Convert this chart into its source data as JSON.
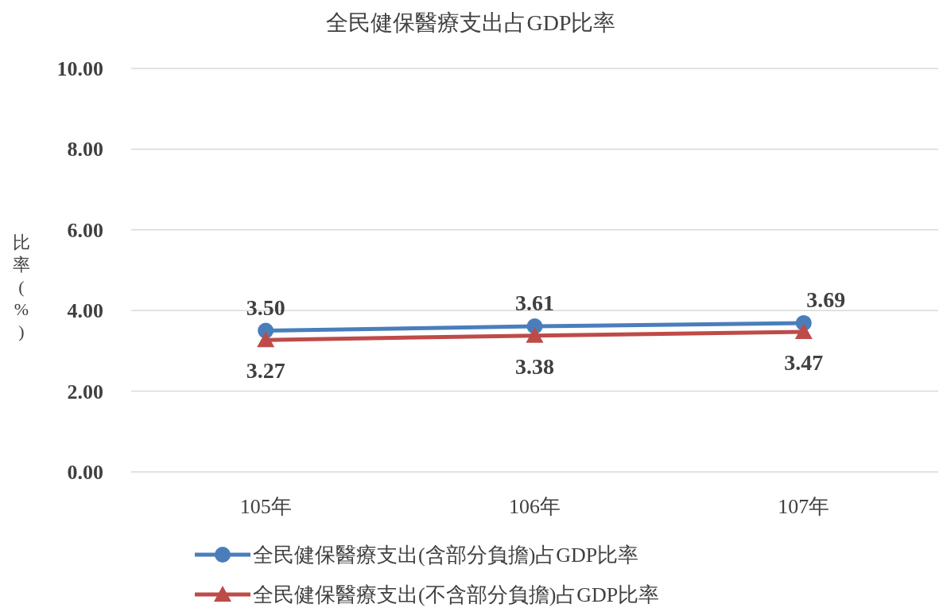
{
  "chart_data": {
    "type": "line",
    "title": "全民健保醫療支出占GDP比率",
    "ylabel": "比率(%)",
    "categories": [
      "105年",
      "106年",
      "107年"
    ],
    "series": [
      {
        "name": "全民健保醫療支出(含部分負擔)占GDP比率",
        "color": "#4a7ebb",
        "marker": "circle",
        "values": [
          3.5,
          3.61,
          3.69
        ],
        "value_labels": [
          "3.50",
          "3.61",
          "3.69"
        ]
      },
      {
        "name": "全民健保醫療支出(不含部分負擔)占GDP比率",
        "color": "#be4b48",
        "marker": "triangle",
        "values": [
          3.27,
          3.38,
          3.47
        ],
        "value_labels": [
          "3.27",
          "3.38",
          "3.47"
        ]
      }
    ],
    "ylim": [
      0,
      10
    ],
    "yticks": [
      {
        "value": 0,
        "label": "0.00"
      },
      {
        "value": 2,
        "label": "2.00"
      },
      {
        "value": 4,
        "label": "4.00"
      },
      {
        "value": 6,
        "label": "6.00"
      },
      {
        "value": 8,
        "label": "8.00"
      },
      {
        "value": 10,
        "label": "10.00"
      }
    ],
    "grid": "y",
    "legend": "bottom",
    "line_style": "solid"
  }
}
